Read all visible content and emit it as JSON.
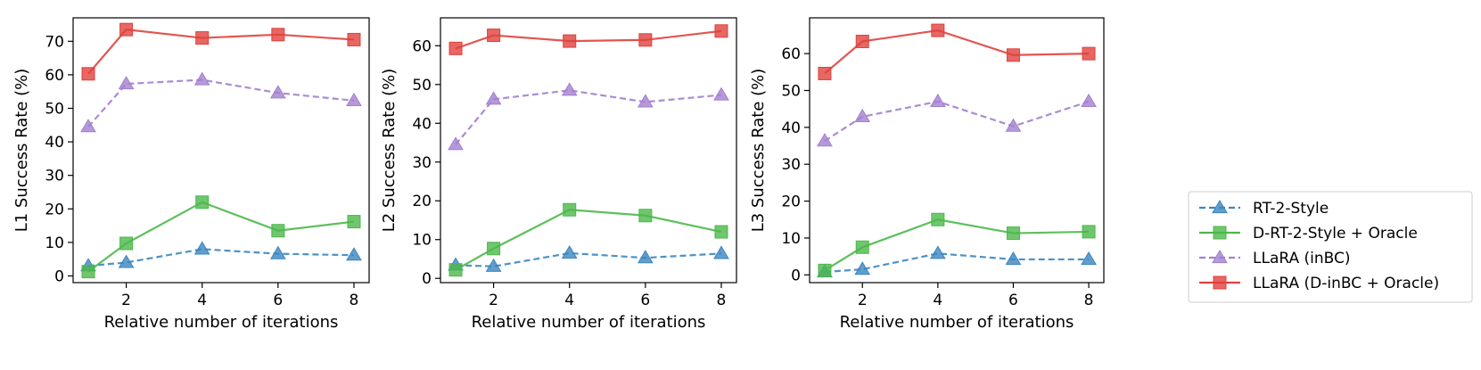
{
  "chart_data": [
    {
      "type": "line",
      "xlabel": "Relative number of iterations",
      "ylabel": "L1 Success Rate (%)",
      "x": [
        1,
        2,
        4,
        6,
        8
      ],
      "xticks": [
        2,
        4,
        6,
        8
      ],
      "xlim": [
        0.6,
        8.4
      ],
      "ylim": [
        -2,
        77
      ],
      "yticks": [
        0,
        10,
        20,
        30,
        40,
        50,
        60,
        70
      ],
      "grid": false,
      "series": [
        {
          "name": "RT-2-Style",
          "values": [
            3.0,
            4.0,
            8.0,
            6.6,
            6.2
          ]
        },
        {
          "name": "D-RT-2-Style + Oracle",
          "values": [
            1.3,
            9.7,
            22.0,
            13.5,
            16.2
          ]
        },
        {
          "name": "LLaRA (inBC)",
          "values": [
            44.5,
            57.3,
            58.5,
            54.6,
            52.3
          ]
        },
        {
          "name": "LLaRA (D-inBC + Oracle)",
          "values": [
            60.3,
            73.5,
            71.0,
            72.0,
            70.5
          ]
        }
      ]
    },
    {
      "type": "line",
      "xlabel": "Relative number of iterations",
      "ylabel": "L2 Success Rate (%)",
      "x": [
        1,
        2,
        4,
        6,
        8
      ],
      "xticks": [
        2,
        4,
        6,
        8
      ],
      "xlim": [
        0.6,
        8.4
      ],
      "ylim": [
        -1.1,
        67.2
      ],
      "yticks": [
        0,
        10,
        20,
        30,
        40,
        50,
        60
      ],
      "grid": false,
      "series": [
        {
          "name": "RT-2-Style",
          "values": [
            3.4,
            3.1,
            6.5,
            5.3,
            6.4
          ]
        },
        {
          "name": "D-RT-2-Style + Oracle",
          "values": [
            2.2,
            7.7,
            17.7,
            16.2,
            12.0
          ]
        },
        {
          "name": "LLaRA (inBC)",
          "values": [
            34.5,
            46.2,
            48.5,
            45.5,
            47.3
          ]
        },
        {
          "name": "LLaRA (D-inBC + Oracle)",
          "values": [
            59.3,
            62.7,
            61.2,
            61.5,
            63.8
          ]
        }
      ]
    },
    {
      "type": "line",
      "xlabel": "Relative number of iterations",
      "ylabel": "L3 Success Rate (%)",
      "x": [
        1,
        2,
        4,
        6,
        8
      ],
      "xticks": [
        2,
        4,
        6,
        8
      ],
      "xlim": [
        0.6,
        8.4
      ],
      "ylim": [
        -2.1,
        69.7
      ],
      "yticks": [
        0,
        10,
        20,
        30,
        40,
        50,
        60
      ],
      "grid": false,
      "series": [
        {
          "name": "RT-2-Style",
          "values": [
            0.8,
            1.5,
            5.8,
            4.2,
            4.2
          ]
        },
        {
          "name": "D-RT-2-Style + Oracle",
          "values": [
            1.2,
            7.5,
            15.0,
            11.3,
            11.7
          ]
        },
        {
          "name": "LLaRA (inBC)",
          "values": [
            36.3,
            42.9,
            47.0,
            40.3,
            47.0
          ]
        },
        {
          "name": "LLaRA (D-inBC + Oracle)",
          "values": [
            54.6,
            63.3,
            66.3,
            59.6,
            60.0
          ]
        }
      ]
    }
  ],
  "legend": {
    "placement": "right",
    "entries": [
      {
        "label": "RT-2-Style",
        "color": "#3b86c0",
        "marker": "triangle",
        "dashed": true
      },
      {
        "label": "D-RT-2-Style + Oracle",
        "color": "#4cb84a",
        "marker": "square",
        "dashed": false
      },
      {
        "label": "LLaRA (inBC)",
        "color": "#a27fcf",
        "marker": "triangle",
        "dashed": true
      },
      {
        "label": "LLaRA (D-inBC + Oracle)",
        "color": "#e0413c",
        "marker": "square",
        "dashed": false
      }
    ]
  }
}
